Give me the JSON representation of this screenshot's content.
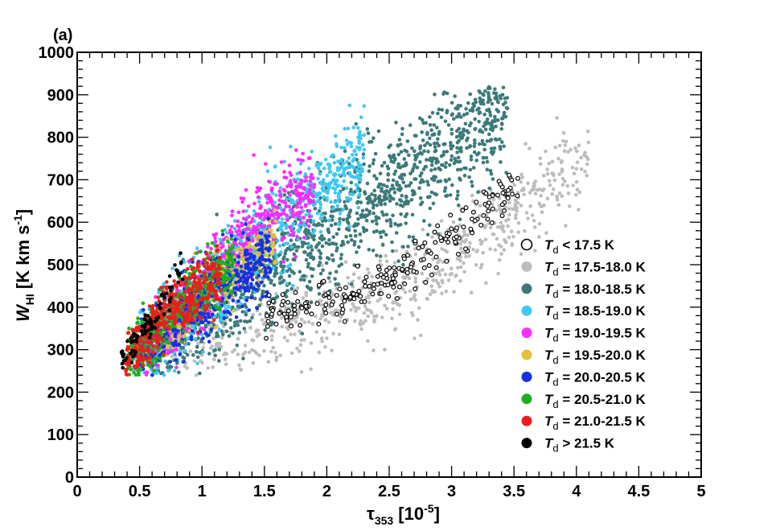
{
  "chart_data": {
    "type": "scatter",
    "panel_label": "(a)",
    "xlim": [
      0,
      5
    ],
    "ylim": [
      0,
      1000
    ],
    "xlabel": {
      "main": "τ",
      "sub": "353",
      "rest": " [10",
      "sup": "-5",
      "end": "]"
    },
    "ylabel": {
      "main": "W",
      "sub": "HI",
      "rest": " [K km s",
      "sup": "-1",
      "end": "]"
    },
    "x_ticks": [
      "0",
      "0.5",
      "1",
      "1.5",
      "2",
      "2.5",
      "3",
      "3.5",
      "4",
      "4.5",
      "5"
    ],
    "y_ticks": [
      "0",
      "100",
      "200",
      "300",
      "400",
      "500",
      "600",
      "700",
      "800",
      "900",
      "1000"
    ],
    "grid": false,
    "legend_placement": "right-center",
    "series": [
      {
        "name": "T_d < 17.5 K",
        "legend_label": "< 17.5 K",
        "color": "#000000",
        "marker": "open-circle",
        "x_range": [
          1.5,
          3.55
        ],
        "y_anchor": [
          [
            1.5,
            390
          ],
          [
            2.2,
            420
          ],
          [
            2.75,
            510
          ],
          [
            3.55,
            680
          ]
        ],
        "spread": 55,
        "count": 220
      },
      {
        "name": "T_d = 17.5-18.0 K",
        "legend_label": "= 17.5-18.0 K",
        "color": "#bdbdbd",
        "marker": "filled-circle",
        "x_range": [
          0.7,
          4.1
        ],
        "y_anchor": [
          [
            0.7,
            310
          ],
          [
            1.5,
            340
          ],
          [
            2.5,
            430
          ],
          [
            3.2,
            560
          ],
          [
            4.1,
            760
          ]
        ],
        "spread": 110,
        "count": 700
      },
      {
        "name": "T_d = 18.0-18.5 K",
        "legend_label": "= 18.0-18.5 K",
        "color": "#3c7a7a",
        "marker": "filled-circle",
        "x_range": [
          0.6,
          3.45
        ],
        "y_anchor": [
          [
            0.6,
            310
          ],
          [
            1.2,
            420
          ],
          [
            1.8,
            540
          ],
          [
            2.4,
            650
          ],
          [
            3.45,
            860
          ]
        ],
        "spread": 150,
        "count": 1400
      },
      {
        "name": "T_d = 18.5-19.0 K",
        "legend_label": "= 18.5-19.0 K",
        "color": "#3fc8f2",
        "marker": "filled-circle",
        "x_range": [
          0.45,
          2.3
        ],
        "y_anchor": [
          [
            0.45,
            280
          ],
          [
            1.0,
            420
          ],
          [
            1.6,
            600
          ],
          [
            2.3,
            760
          ]
        ],
        "spread": 120,
        "count": 900
      },
      {
        "name": "T_d = 19.0-19.5 K",
        "legend_label": "= 19.0-19.5 K",
        "color": "#ff2bff",
        "marker": "filled-circle",
        "x_range": [
          0.55,
          1.9
        ],
        "y_anchor": [
          [
            0.55,
            300
          ],
          [
            1.0,
            430
          ],
          [
            1.5,
            620
          ],
          [
            1.9,
            680
          ]
        ],
        "spread": 100,
        "count": 650
      },
      {
        "name": "T_d = 19.5-20.0 K",
        "legend_label": "= 19.5-20.0 K",
        "color": "#e0c23f",
        "marker": "filled-circle",
        "x_range": [
          0.65,
          1.6
        ],
        "y_anchor": [
          [
            0.65,
            330
          ],
          [
            1.1,
            450
          ],
          [
            1.6,
            560
          ]
        ],
        "spread": 80,
        "count": 350
      },
      {
        "name": "T_d = 20.0-20.5 K",
        "legend_label": "= 20.0-20.5 K",
        "color": "#1530e6",
        "marker": "filled-circle",
        "x_range": [
          0.5,
          1.55
        ],
        "y_anchor": [
          [
            0.5,
            290
          ],
          [
            1.0,
            420
          ],
          [
            1.55,
            520
          ]
        ],
        "spread": 90,
        "count": 500
      },
      {
        "name": "T_d = 20.5-21.0 K",
        "legend_label": "= 20.5-21.0 K",
        "color": "#1fae1f",
        "marker": "filled-circle",
        "x_range": [
          0.4,
          1.25
        ],
        "y_anchor": [
          [
            0.4,
            265
          ],
          [
            0.8,
            400
          ],
          [
            1.25,
            500
          ]
        ],
        "spread": 80,
        "count": 450
      },
      {
        "name": "T_d = 21.0-21.5 K",
        "legend_label": "= 21.0-21.5 K",
        "color": "#f01c1c",
        "marker": "filled-circle",
        "x_range": [
          0.38,
          1.15
        ],
        "y_anchor": [
          [
            0.38,
            265
          ],
          [
            0.7,
            380
          ],
          [
            1.15,
            480
          ]
        ],
        "spread": 75,
        "count": 400
      },
      {
        "name": "T_d > 21.5 K",
        "legend_label": "> 21.5 K",
        "color": "#000000",
        "marker": "filled-circle",
        "x_range": [
          0.35,
          0.85
        ],
        "y_anchor": [
          [
            0.35,
            280
          ],
          [
            0.6,
            360
          ],
          [
            0.85,
            500
          ]
        ],
        "spread": 40,
        "count": 90
      }
    ],
    "legend_symbol": "T",
    "legend_symbol_sub": "d"
  }
}
